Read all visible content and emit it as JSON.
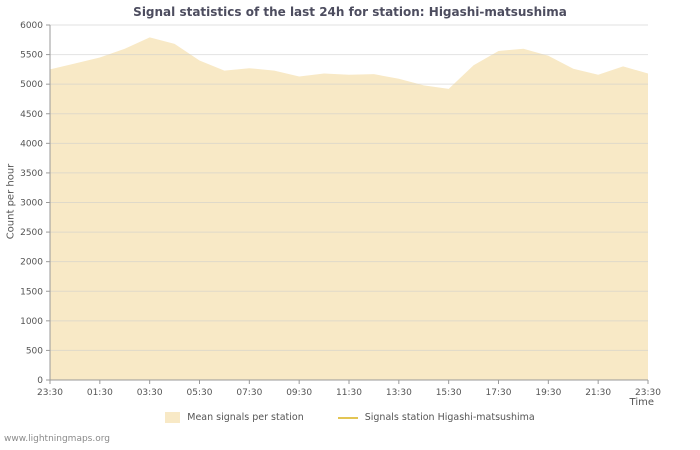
{
  "page": {
    "watermark": "www.lightningmaps.org"
  },
  "chart_data": {
    "type": "area",
    "title": "Signal statistics of the last 24h for station: Higashi-matsushima",
    "xlabel": "Time",
    "ylabel": "Count per hour",
    "ylim": [
      0,
      6000
    ],
    "ytick_step": 500,
    "x_tick_labels": [
      "23:30",
      "01:30",
      "03:30",
      "05:30",
      "07:30",
      "09:30",
      "11:30",
      "13:30",
      "15:30",
      "17:30",
      "19:30",
      "21:30",
      "23:30"
    ],
    "grid": "horizontal",
    "legend_position": "bottom",
    "series": [
      {
        "name": "Mean signals per station",
        "type": "area",
        "color": "#f8e9c6",
        "x_hours_from_start": [
          0,
          1,
          2,
          3,
          4,
          5,
          6,
          7,
          8,
          9,
          10,
          11,
          12,
          13,
          14,
          15,
          16,
          17,
          18,
          19,
          20,
          21,
          22,
          23,
          24
        ],
        "values": [
          5250,
          5350,
          5450,
          5600,
          5790,
          5680,
          5400,
          5230,
          5270,
          5230,
          5130,
          5180,
          5160,
          5170,
          5090,
          4980,
          4920,
          5320,
          5560,
          5600,
          5480,
          5260,
          5160,
          5300,
          5180
        ]
      },
      {
        "name": "Signals station Higashi-matsushima",
        "type": "line",
        "color": "#e3c554",
        "values": []
      }
    ]
  }
}
